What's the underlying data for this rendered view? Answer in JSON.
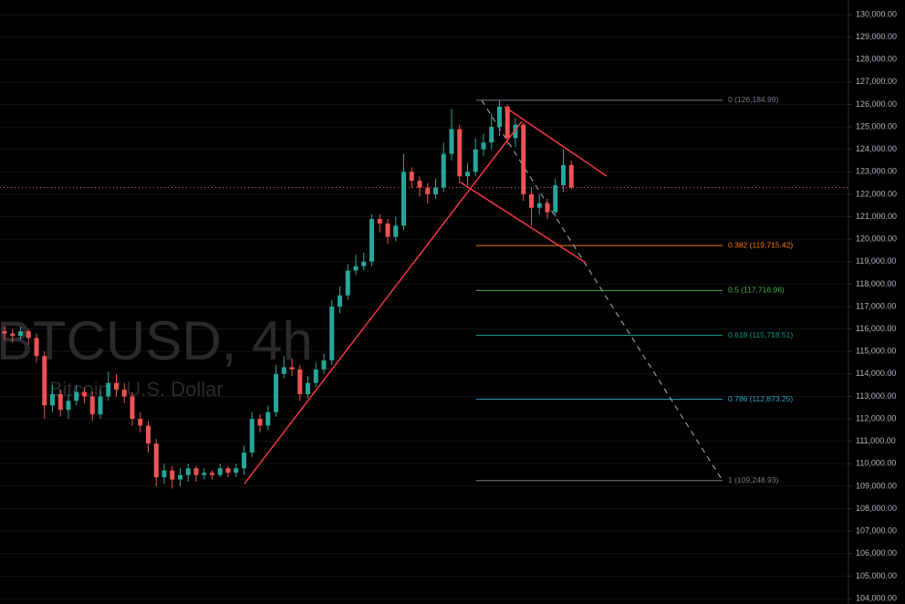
{
  "chart_data": {
    "type": "candlestick",
    "watermark": {
      "symbol": "BTCUSD, 4h",
      "description": "Bitcoin / U.S. Dollar"
    },
    "up_color": "#26a69a",
    "down_color": "#ef5350",
    "open": [
      115900,
      115800,
      115700,
      115900,
      115600,
      114800,
      112600,
      113100,
      112400,
      112800,
      113200,
      113000,
      112200,
      113000,
      113600,
      113300,
      113000,
      112000,
      111700,
      110900,
      109400,
      109700,
      109300,
      109500,
      109800,
      109500,
      109600,
      109500,
      109800,
      109600,
      109800,
      110500,
      112000,
      111700,
      112300,
      114000,
      114300,
      114200,
      113100,
      113600,
      114200,
      114600,
      117000,
      117500,
      118600,
      118800,
      119000,
      120900,
      120700,
      120100,
      120600,
      123000,
      122600,
      122300,
      122000,
      122300,
      123800,
      124900,
      122800,
      123000,
      124000,
      124300,
      125000,
      125900,
      124500,
      125100,
      122000,
      121400,
      121600,
      121200,
      122400,
      123300
    ],
    "high": [
      116100,
      116000,
      116100,
      116000,
      115800,
      115000,
      113500,
      113300,
      113100,
      113500,
      113400,
      113200,
      113300,
      114100,
      114000,
      113600,
      113200,
      112300,
      111900,
      111100,
      110000,
      109900,
      109800,
      110000,
      109900,
      109800,
      109700,
      110000,
      109900,
      110000,
      110800,
      112300,
      112200,
      112600,
      114400,
      114800,
      114700,
      114400,
      113900,
      114500,
      114900,
      117300,
      117900,
      118900,
      119300,
      119400,
      121100,
      121100,
      120900,
      121000,
      123800,
      123200,
      122800,
      122500,
      122700,
      124300,
      125800,
      125100,
      123400,
      124500,
      124700,
      125600,
      126184.99,
      126000,
      125400,
      125200,
      122300,
      122000,
      121800,
      122700,
      124000,
      123500
    ],
    "low": [
      115500,
      115400,
      115500,
      115300,
      114500,
      112000,
      112300,
      112100,
      112000,
      112600,
      112700,
      111900,
      112000,
      112800,
      113000,
      112700,
      111700,
      111400,
      110500,
      109000,
      109100,
      108900,
      109000,
      109200,
      109200,
      109300,
      109300,
      109400,
      109400,
      109400,
      109500,
      110300,
      111400,
      111500,
      112100,
      113800,
      113900,
      112800,
      112900,
      113400,
      114000,
      114400,
      116700,
      117300,
      118400,
      118600,
      118800,
      120300,
      119800,
      119900,
      120400,
      122300,
      121900,
      121600,
      121800,
      122100,
      123500,
      122500,
      122400,
      122800,
      123700,
      124000,
      124600,
      124200,
      124100,
      121700,
      120600,
      121100,
      120900,
      121000,
      122100,
      122200
    ],
    "close": [
      115800,
      115700,
      115900,
      115600,
      114800,
      112600,
      113100,
      112400,
      112800,
      113200,
      113000,
      112200,
      113000,
      113600,
      113300,
      113000,
      112000,
      111700,
      110900,
      109400,
      109700,
      109300,
      109500,
      109800,
      109500,
      109600,
      109500,
      109800,
      109600,
      109800,
      110500,
      112000,
      111700,
      112300,
      114000,
      114300,
      114200,
      113100,
      113600,
      114200,
      114600,
      117000,
      117500,
      118600,
      118800,
      119000,
      120900,
      120700,
      120100,
      120600,
      123000,
      122600,
      122300,
      122000,
      122300,
      123800,
      124900,
      122800,
      123000,
      124000,
      124300,
      125000,
      125900,
      124500,
      125100,
      122000,
      121400,
      121600,
      121200,
      122400,
      123300,
      122300
    ],
    "fib_levels": [
      {
        "price": 126184.99,
        "label": "0 (126,184.99)",
        "color": "#787b86"
      },
      {
        "price": 119715.42,
        "label": "0.382 (119,715.42)",
        "color": "#f57c00"
      },
      {
        "price": 117716.96,
        "label": "0.5 (117,716.96)",
        "color": "#4caf50"
      },
      {
        "price": 115718.51,
        "label": "0.618 (115,718.51)",
        "color": "#089981"
      },
      {
        "price": 112873.25,
        "label": "0.786 (112,873.25)",
        "color": "#2fa7c7"
      },
      {
        "price": 109248.93,
        "label": "1 (109,248.93)",
        "color": "#787b86"
      }
    ],
    "ylim": [
      104000,
      130400
    ],
    "yticks": [
      {
        "value": 104000,
        "label": "104,000.00"
      },
      {
        "value": 105000,
        "label": "105,000.00"
      },
      {
        "value": 106000,
        "label": "106,000.00"
      },
      {
        "value": 107000,
        "label": "107,000.00"
      },
      {
        "value": 108000,
        "label": "108,000.00"
      },
      {
        "value": 109000,
        "label": "109,000.00"
      },
      {
        "value": 110000,
        "label": "110,000.00"
      },
      {
        "value": 111000,
        "label": "111,000.00"
      },
      {
        "value": 112000,
        "label": "112,000.00"
      },
      {
        "value": 113000,
        "label": "113,000.00"
      },
      {
        "value": 114000,
        "label": "114,000.00"
      },
      {
        "value": 115000,
        "label": "115,000.00"
      },
      {
        "value": 116000,
        "label": "116,000.00"
      },
      {
        "value": 117000,
        "label": "117,000.00"
      },
      {
        "value": 118000,
        "label": "118,000.00"
      },
      {
        "value": 119000,
        "label": "119,000.00"
      },
      {
        "value": 120000,
        "label": "120,000.00"
      },
      {
        "value": 121000,
        "label": "121,000.00"
      },
      {
        "value": 122000,
        "label": "122,000.00"
      },
      {
        "value": 123000,
        "label": "123,000.00"
      },
      {
        "value": 124000,
        "label": "124,000.00"
      },
      {
        "value": 125000,
        "label": "125,000.00"
      },
      {
        "value": 126000,
        "label": "126,000.00"
      },
      {
        "value": 127000,
        "label": "127,000.00"
      },
      {
        "value": 128000,
        "label": "128,000.00"
      },
      {
        "value": 129000,
        "label": "129,000.00"
      },
      {
        "value": 130000,
        "label": "130,000.00"
      }
    ],
    "grid": true
  }
}
